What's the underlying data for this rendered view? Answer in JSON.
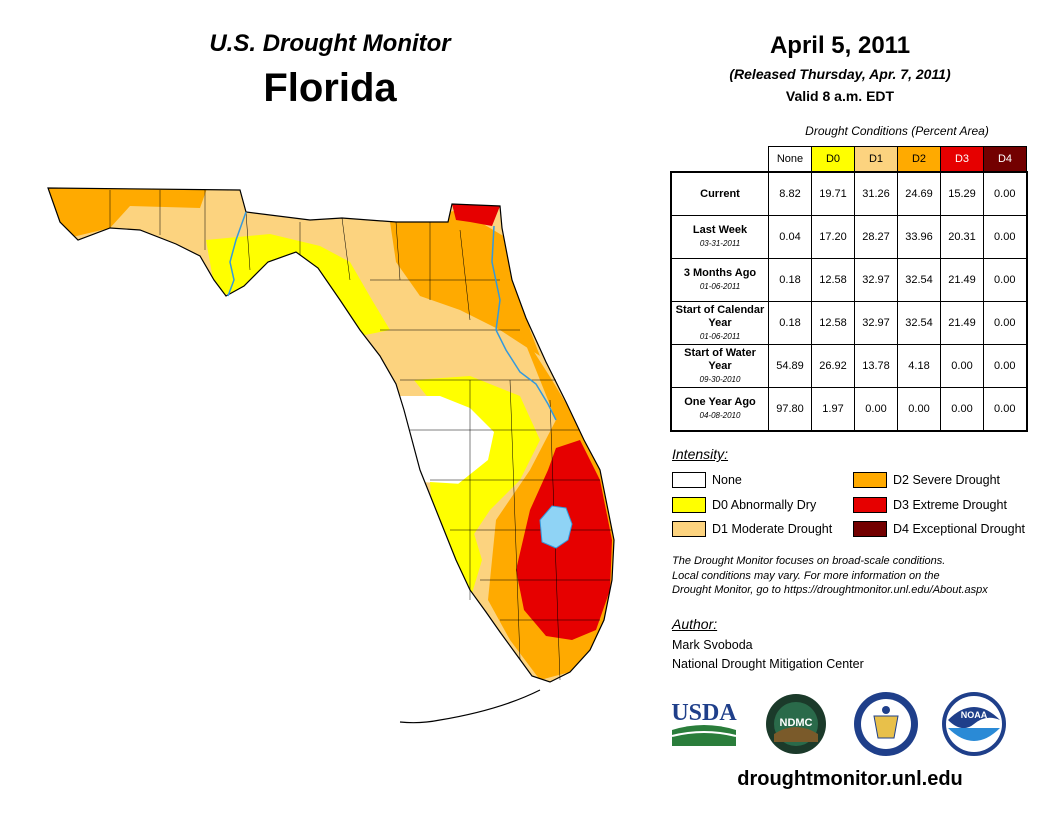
{
  "header": {
    "subtitle": "U.S. Drought Monitor",
    "state": "Florida",
    "date": "April 5, 2011",
    "released": "(Released Thursday, Apr. 7, 2011)",
    "valid": "Valid 8 a.m. EDT"
  },
  "table": {
    "title": "Drought Conditions (Percent Area)",
    "columns": [
      "None",
      "D0",
      "D1",
      "D2",
      "D3",
      "D4"
    ],
    "column_colors": [
      "#ffffff",
      "#ffff00",
      "#fcd37f",
      "#ffaa00",
      "#e60000",
      "#730000"
    ],
    "rows": [
      {
        "label": "Current",
        "date": "",
        "values": [
          "8.82",
          "19.71",
          "31.26",
          "24.69",
          "15.29",
          "0.00"
        ]
      },
      {
        "label": "Last Week",
        "date": "03-31-2011",
        "values": [
          "0.04",
          "17.20",
          "28.27",
          "33.96",
          "20.31",
          "0.00"
        ]
      },
      {
        "label": "3 Months Ago",
        "date": "01-06-2011",
        "values": [
          "0.18",
          "12.58",
          "32.97",
          "32.54",
          "21.49",
          "0.00"
        ]
      },
      {
        "label": "Start of Calendar Year",
        "date": "01-06-2011",
        "values": [
          "0.18",
          "12.58",
          "32.97",
          "32.54",
          "21.49",
          "0.00"
        ]
      },
      {
        "label": "Start of Water Year",
        "date": "09-30-2010",
        "values": [
          "54.89",
          "26.92",
          "13.78",
          "4.18",
          "0.00",
          "0.00"
        ]
      },
      {
        "label": "One Year Ago",
        "date": "04-08-2010",
        "values": [
          "97.80",
          "1.97",
          "0.00",
          "0.00",
          "0.00",
          "0.00"
        ]
      }
    ]
  },
  "legend": {
    "title": "Intensity:",
    "items": [
      {
        "label": "None",
        "color": "#ffffff"
      },
      {
        "label": "D0 Abnormally Dry",
        "color": "#ffff00"
      },
      {
        "label": "D1 Moderate Drought",
        "color": "#fcd37f"
      },
      {
        "label": "D2 Severe Drought",
        "color": "#ffaa00"
      },
      {
        "label": "D3 Extreme Drought",
        "color": "#e60000"
      },
      {
        "label": "D4 Exceptional Drought",
        "color": "#730000"
      }
    ]
  },
  "note": {
    "line1": "The Drought Monitor focuses on broad-scale conditions.",
    "line2": "Local conditions may vary. For more information on the",
    "line3": "Drought Monitor, go to https://droughtmonitor.unl.edu/About.aspx"
  },
  "author": {
    "title": "Author:",
    "name": "Mark Svoboda",
    "org": "National Drought Mitigation Center"
  },
  "logos": {
    "usda": "USDA",
    "ndmc": "NDMC",
    "noaa": "NOAA"
  },
  "website": "droughtmonitor.unl.edu",
  "colors": {
    "water": "#8fd3f5",
    "river": "#3399dd"
  }
}
